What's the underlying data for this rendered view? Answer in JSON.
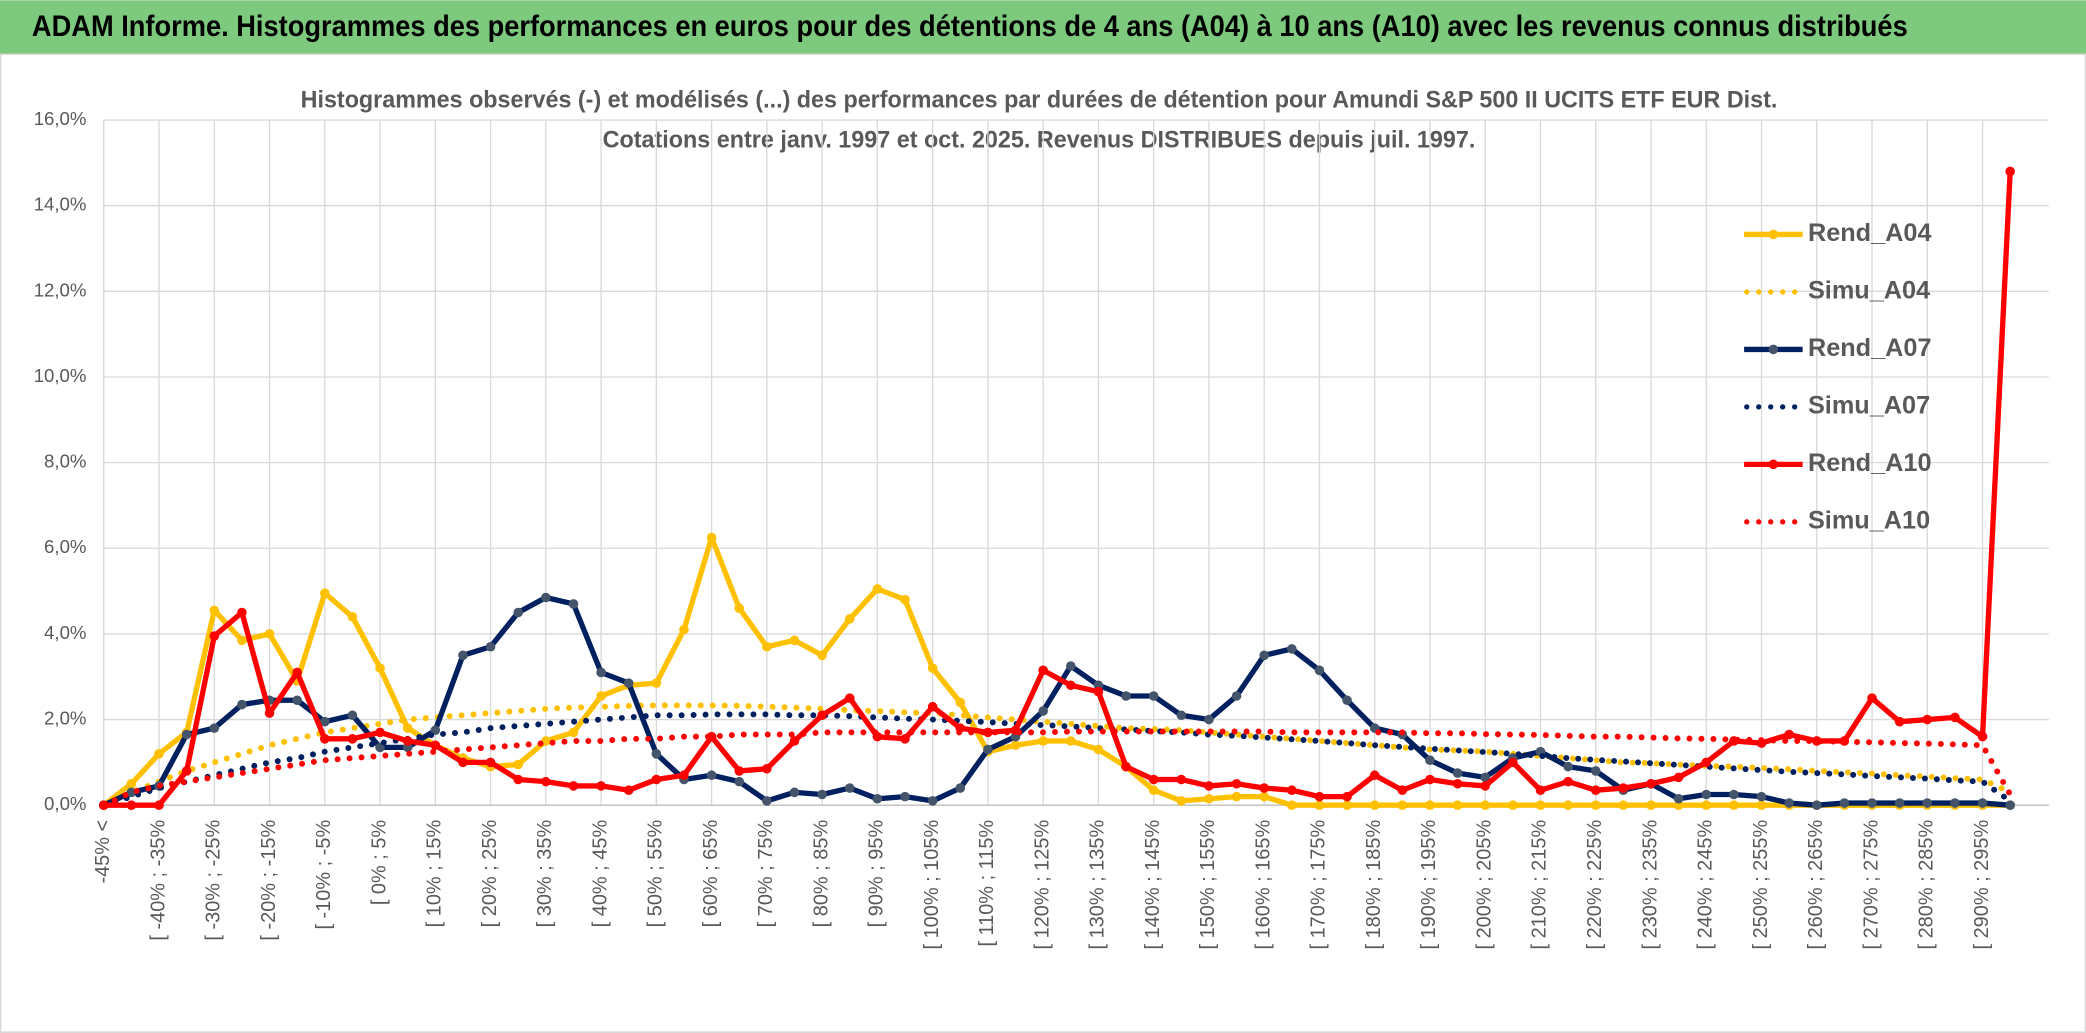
{
  "header": {
    "title": "ADAM Informe. Histogrammes des performances en euros pour des détentions de 4 ans (A04) à 10 ans (A10) avec les revenus connus distribués"
  },
  "chart_data": {
    "type": "line",
    "title": [
      "Histogrammes observés (-) et modélisés (...) des performances par durées de détention pour Amundi S&P 500 II UCITS ETF EUR Dist.",
      "Cotations entre janv. 1997 et oct. 2025. Revenus DISTRIBUES depuis juil. 1997."
    ],
    "categories": [
      "-45% <",
      null,
      "[ -40% ; -35%",
      null,
      "[ -30% ; -25%",
      null,
      "[ -20% ; -15%",
      null,
      "[ -10% ; -5%",
      null,
      "[ 0% ; 5%",
      null,
      "[ 10% ; 15%",
      null,
      "[ 20% ; 25%",
      null,
      "[ 30% ; 35%",
      null,
      "[ 40% ; 45%",
      null,
      "[ 50% ; 55%",
      null,
      "[ 60% ; 65%",
      null,
      "[ 70% ; 75%",
      null,
      "[ 80% ; 85%",
      null,
      "[ 90% ; 95%",
      null,
      "[ 100% ; 105%",
      null,
      "[ 110% ; 115%",
      null,
      "[ 120% ; 125%",
      null,
      "[ 130% ; 135%",
      null,
      "[ 140% ; 145%",
      null,
      "[ 150% ; 155%",
      null,
      "[ 160% ; 165%",
      null,
      "[ 170% ; 175%",
      null,
      "[ 180% ; 185%",
      null,
      "[ 190% ; 195%",
      null,
      "[ 200% ; 205%",
      null,
      "[ 210% ; 215%",
      null,
      "[ 220% ; 225%",
      null,
      "[ 230% ; 235%",
      null,
      "[ 240% ; 245%",
      null,
      "[ 250% ; 255%",
      null,
      "[ 260% ; 265%",
      null,
      "[ 270% ; 275%",
      null,
      "[ 280% ; 285%",
      null,
      "[ 290% ; 295%",
      null
    ],
    "ylim": [
      0,
      16
    ],
    "yticks": [
      {
        "value": 0,
        "label": "0,0%"
      },
      {
        "value": 2,
        "label": "2,0%"
      },
      {
        "value": 4,
        "label": "4,0%"
      },
      {
        "value": 6,
        "label": "6,0%"
      },
      {
        "value": 8,
        "label": "8,0%"
      },
      {
        "value": 10,
        "label": "10,0%"
      },
      {
        "value": 12,
        "label": "12,0%"
      },
      {
        "value": 14,
        "label": "14,0%"
      },
      {
        "value": 16,
        "label": "16,0%"
      }
    ],
    "grid": true,
    "legend": "right",
    "series": [
      {
        "name": "Rend_A04",
        "color": "#ffc000",
        "style": "solid",
        "markers": true,
        "values": [
          0,
          0.5,
          1.2,
          1.7,
          4.55,
          3.85,
          4.0,
          2.9,
          4.95,
          4.4,
          3.2,
          1.8,
          1.4,
          1.1,
          0.9,
          0.95,
          1.5,
          1.7,
          2.55,
          2.8,
          2.85,
          4.1,
          6.25,
          4.6,
          3.7,
          3.85,
          3.5,
          4.35,
          5.05,
          4.8,
          3.2,
          2.4,
          1.25,
          1.4,
          1.5,
          1.5,
          1.3,
          0.9,
          0.35,
          0.1,
          0.15,
          0.2,
          0.2,
          0,
          0,
          0,
          0,
          0,
          0,
          0,
          0,
          0,
          0,
          0,
          0,
          0,
          0,
          0,
          0,
          0,
          0,
          0,
          0,
          0,
          0,
          0,
          0,
          0,
          0,
          0
        ]
      },
      {
        "name": "Simu_A04",
        "color": "#ffc000",
        "style": "dotted",
        "markers": false,
        "values": [
          0,
          0.3,
          0.55,
          0.8,
          1.0,
          1.2,
          1.4,
          1.55,
          1.7,
          1.8,
          1.9,
          2.0,
          2.05,
          2.1,
          2.15,
          2.2,
          2.25,
          2.28,
          2.3,
          2.32,
          2.33,
          2.33,
          2.33,
          2.32,
          2.3,
          2.28,
          2.25,
          2.22,
          2.2,
          2.17,
          2.15,
          2.1,
          2.05,
          2.0,
          1.95,
          1.9,
          1.85,
          1.8,
          1.78,
          1.75,
          1.7,
          1.65,
          1.6,
          1.55,
          1.5,
          1.45,
          1.4,
          1.35,
          1.3,
          1.28,
          1.25,
          1.2,
          1.15,
          1.1,
          1.05,
          1.0,
          0.98,
          0.95,
          0.92,
          0.9,
          0.87,
          0.84,
          0.8,
          0.77,
          0.74,
          0.7,
          0.67,
          0.63,
          0.6,
          0.3
        ]
      },
      {
        "name": "Rend_A07",
        "color": "#002060",
        "style": "solid",
        "markers": true,
        "values": [
          0,
          0.3,
          0.45,
          1.65,
          1.8,
          2.35,
          2.45,
          2.45,
          1.95,
          2.1,
          1.35,
          1.35,
          1.75,
          3.5,
          3.7,
          4.5,
          4.85,
          4.7,
          3.1,
          2.85,
          1.2,
          0.6,
          0.7,
          0.55,
          0.1,
          0.3,
          0.25,
          0.4,
          0.15,
          0.2,
          0.1,
          0.4,
          1.3,
          1.6,
          2.2,
          3.25,
          2.8,
          2.55,
          2.55,
          2.1,
          2.0,
          2.55,
          3.5,
          3.65,
          3.15,
          2.45,
          1.8,
          1.65,
          1.05,
          0.75,
          0.65,
          1.1,
          1.25,
          0.9,
          0.8,
          0.35,
          0.5,
          0.15,
          0.25,
          0.25,
          0.2,
          0.05,
          0,
          0.05,
          0.05,
          0.05,
          0.05,
          0.05,
          0.05,
          0
        ]
      },
      {
        "name": "Simu_A07",
        "color": "#002060",
        "style": "dotted",
        "markers": false,
        "values": [
          0,
          0.2,
          0.4,
          0.55,
          0.7,
          0.85,
          1.0,
          1.1,
          1.25,
          1.35,
          1.45,
          1.55,
          1.65,
          1.7,
          1.8,
          1.85,
          1.9,
          1.95,
          2.0,
          2.05,
          2.1,
          2.1,
          2.12,
          2.12,
          2.12,
          2.1,
          2.1,
          2.08,
          2.05,
          2.02,
          2.0,
          1.97,
          1.94,
          1.9,
          1.87,
          1.84,
          1.8,
          1.77,
          1.73,
          1.7,
          1.65,
          1.62,
          1.58,
          1.54,
          1.5,
          1.45,
          1.4,
          1.36,
          1.32,
          1.28,
          1.24,
          1.2,
          1.15,
          1.1,
          1.06,
          1.02,
          0.98,
          0.94,
          0.9,
          0.86,
          0.82,
          0.78,
          0.75,
          0.72,
          0.68,
          0.65,
          0.62,
          0.58,
          0.55,
          0.1
        ]
      },
      {
        "name": "Rend_A10",
        "color": "#ff0000",
        "style": "solid",
        "markers": true,
        "values": [
          0,
          0,
          0,
          0.8,
          3.95,
          4.5,
          2.15,
          3.1,
          1.55,
          1.55,
          1.7,
          1.5,
          1.4,
          1.0,
          1.0,
          0.6,
          0.55,
          0.45,
          0.45,
          0.35,
          0.6,
          0.7,
          1.6,
          0.8,
          0.85,
          1.5,
          2.1,
          2.5,
          1.6,
          1.55,
          2.3,
          1.8,
          1.7,
          1.75,
          3.15,
          2.8,
          2.65,
          0.9,
          0.6,
          0.6,
          0.45,
          0.5,
          0.4,
          0.35,
          0.2,
          0.2,
          0.7,
          0.35,
          0.6,
          0.5,
          0.45,
          1.0,
          0.35,
          0.55,
          0.35,
          0.4,
          0.5,
          0.65,
          1.0,
          1.5,
          1.45,
          1.65,
          1.5,
          1.5,
          2.5,
          1.95,
          2.0,
          2.05,
          1.6,
          14.8
        ]
      },
      {
        "name": "Simu_A10",
        "color": "#ff0000",
        "style": "dotted",
        "markers": false,
        "values": [
          0,
          0.3,
          0.45,
          0.55,
          0.65,
          0.75,
          0.85,
          0.95,
          1.05,
          1.1,
          1.15,
          1.2,
          1.25,
          1.3,
          1.35,
          1.4,
          1.45,
          1.5,
          1.5,
          1.55,
          1.55,
          1.6,
          1.6,
          1.65,
          1.65,
          1.65,
          1.7,
          1.7,
          1.7,
          1.7,
          1.7,
          1.7,
          1.7,
          1.7,
          1.7,
          1.72,
          1.72,
          1.72,
          1.72,
          1.72,
          1.72,
          1.72,
          1.72,
          1.7,
          1.7,
          1.7,
          1.7,
          1.7,
          1.68,
          1.68,
          1.66,
          1.65,
          1.64,
          1.62,
          1.6,
          1.6,
          1.58,
          1.56,
          1.55,
          1.53,
          1.52,
          1.5,
          1.5,
          1.48,
          1.47,
          1.45,
          1.44,
          1.42,
          1.4,
          0.25
        ]
      }
    ]
  }
}
